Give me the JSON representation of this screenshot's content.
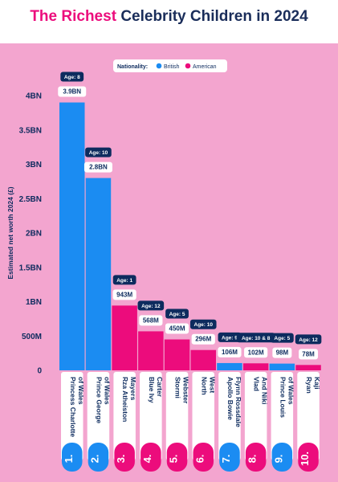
{
  "title": {
    "highlight": "The Richest",
    "rest": "Celebrity Children in 2024"
  },
  "colors": {
    "background": "#f3a5cf",
    "british": "#1b8cf2",
    "american": "#ec0c7c",
    "navy": "#0d2b5e",
    "title_text": "#1a2d5a",
    "highlight": "#ec0c7c",
    "axis_text": "#0d2b5e"
  },
  "legend": {
    "label": "Nationality:",
    "entries": [
      {
        "name": "British",
        "color": "#1b8cf2"
      },
      {
        "name": "American",
        "color": "#ec0c7c"
      }
    ]
  },
  "chart_data": {
    "type": "bar",
    "ylabel": "Estimated net worth 2024 (£)",
    "xlabel": "",
    "ylim": [
      0,
      4000000000
    ],
    "y_ticks": [
      {
        "value": 0,
        "label": "0"
      },
      {
        "value": 500000000,
        "label": "500M"
      },
      {
        "value": 1000000000,
        "label": "1BN"
      },
      {
        "value": 1500000000,
        "label": "1.5BN"
      },
      {
        "value": 2000000000,
        "label": "2BN"
      },
      {
        "value": 2500000000,
        "label": "2.5BN"
      },
      {
        "value": 3000000000,
        "label": "3BN"
      },
      {
        "value": 3500000000,
        "label": "3.5BN"
      },
      {
        "value": 4000000000,
        "label": "4BN"
      }
    ],
    "legend_position": "top",
    "bars": [
      {
        "rank": "1.",
        "name": "Princess Charlotte of Wales",
        "name_lines": [
          "Princess Charlotte",
          "of Wales"
        ],
        "value": 3900000000,
        "value_label": "3.9BN",
        "age": "Age: 8",
        "nationality": "British"
      },
      {
        "rank": "2.",
        "name": "Prince George of Wales",
        "name_lines": [
          "Prince George",
          "of Wales"
        ],
        "value": 2800000000,
        "value_label": "2.8BN",
        "age": "Age: 10",
        "nationality": "British"
      },
      {
        "rank": "3.",
        "name": "Rza Atheiston Mayers",
        "name_lines": [
          "Rza Atheiston",
          "Mayers"
        ],
        "value": 943000000,
        "value_label": "943M",
        "age": "Age: 1",
        "nationality": "American"
      },
      {
        "rank": "4.",
        "name": "Blue Ivy Carter",
        "name_lines": [
          "Blue Ivy",
          "Carter"
        ],
        "value": 568000000,
        "value_label": "568M",
        "age": "Age: 12",
        "nationality": "American"
      },
      {
        "rank": "5.",
        "name": "Stormi Webster",
        "name_lines": [
          "Stormi",
          "Webster"
        ],
        "value": 450000000,
        "value_label": "450M",
        "age": "Age: 5",
        "nationality": "American"
      },
      {
        "rank": "6.",
        "name": "North West",
        "name_lines": [
          "North",
          "West"
        ],
        "value": 296000000,
        "value_label": "296M",
        "age": "Age: 10",
        "nationality": "American"
      },
      {
        "rank": "7.",
        "name": "Apollo Bowie Flynn Rossdale",
        "name_lines": [
          "Apollo Bowie",
          "Flynn Rossdale"
        ],
        "value": 106000000,
        "value_label": "106M",
        "age": "Age: 9",
        "nationality": "British"
      },
      {
        "rank": "8.",
        "name": "Vlad And Niki",
        "name_lines": [
          "Vlad",
          "And Niki"
        ],
        "value": 102000000,
        "value_label": "102M",
        "age": "Age: 10 & 8",
        "nationality": "American"
      },
      {
        "rank": "9.",
        "name": "Prince Louis of Wales",
        "name_lines": [
          "Prince Louis",
          "of Wales"
        ],
        "value": 98000000,
        "value_label": "98M",
        "age": "Age: 5",
        "nationality": "British"
      },
      {
        "rank": "10.",
        "name": "Ryan Kaji",
        "name_lines": [
          "Ryan",
          "Kaji"
        ],
        "value": 78000000,
        "value_label": "78M",
        "age": "Age: 12",
        "nationality": "American"
      }
    ]
  }
}
